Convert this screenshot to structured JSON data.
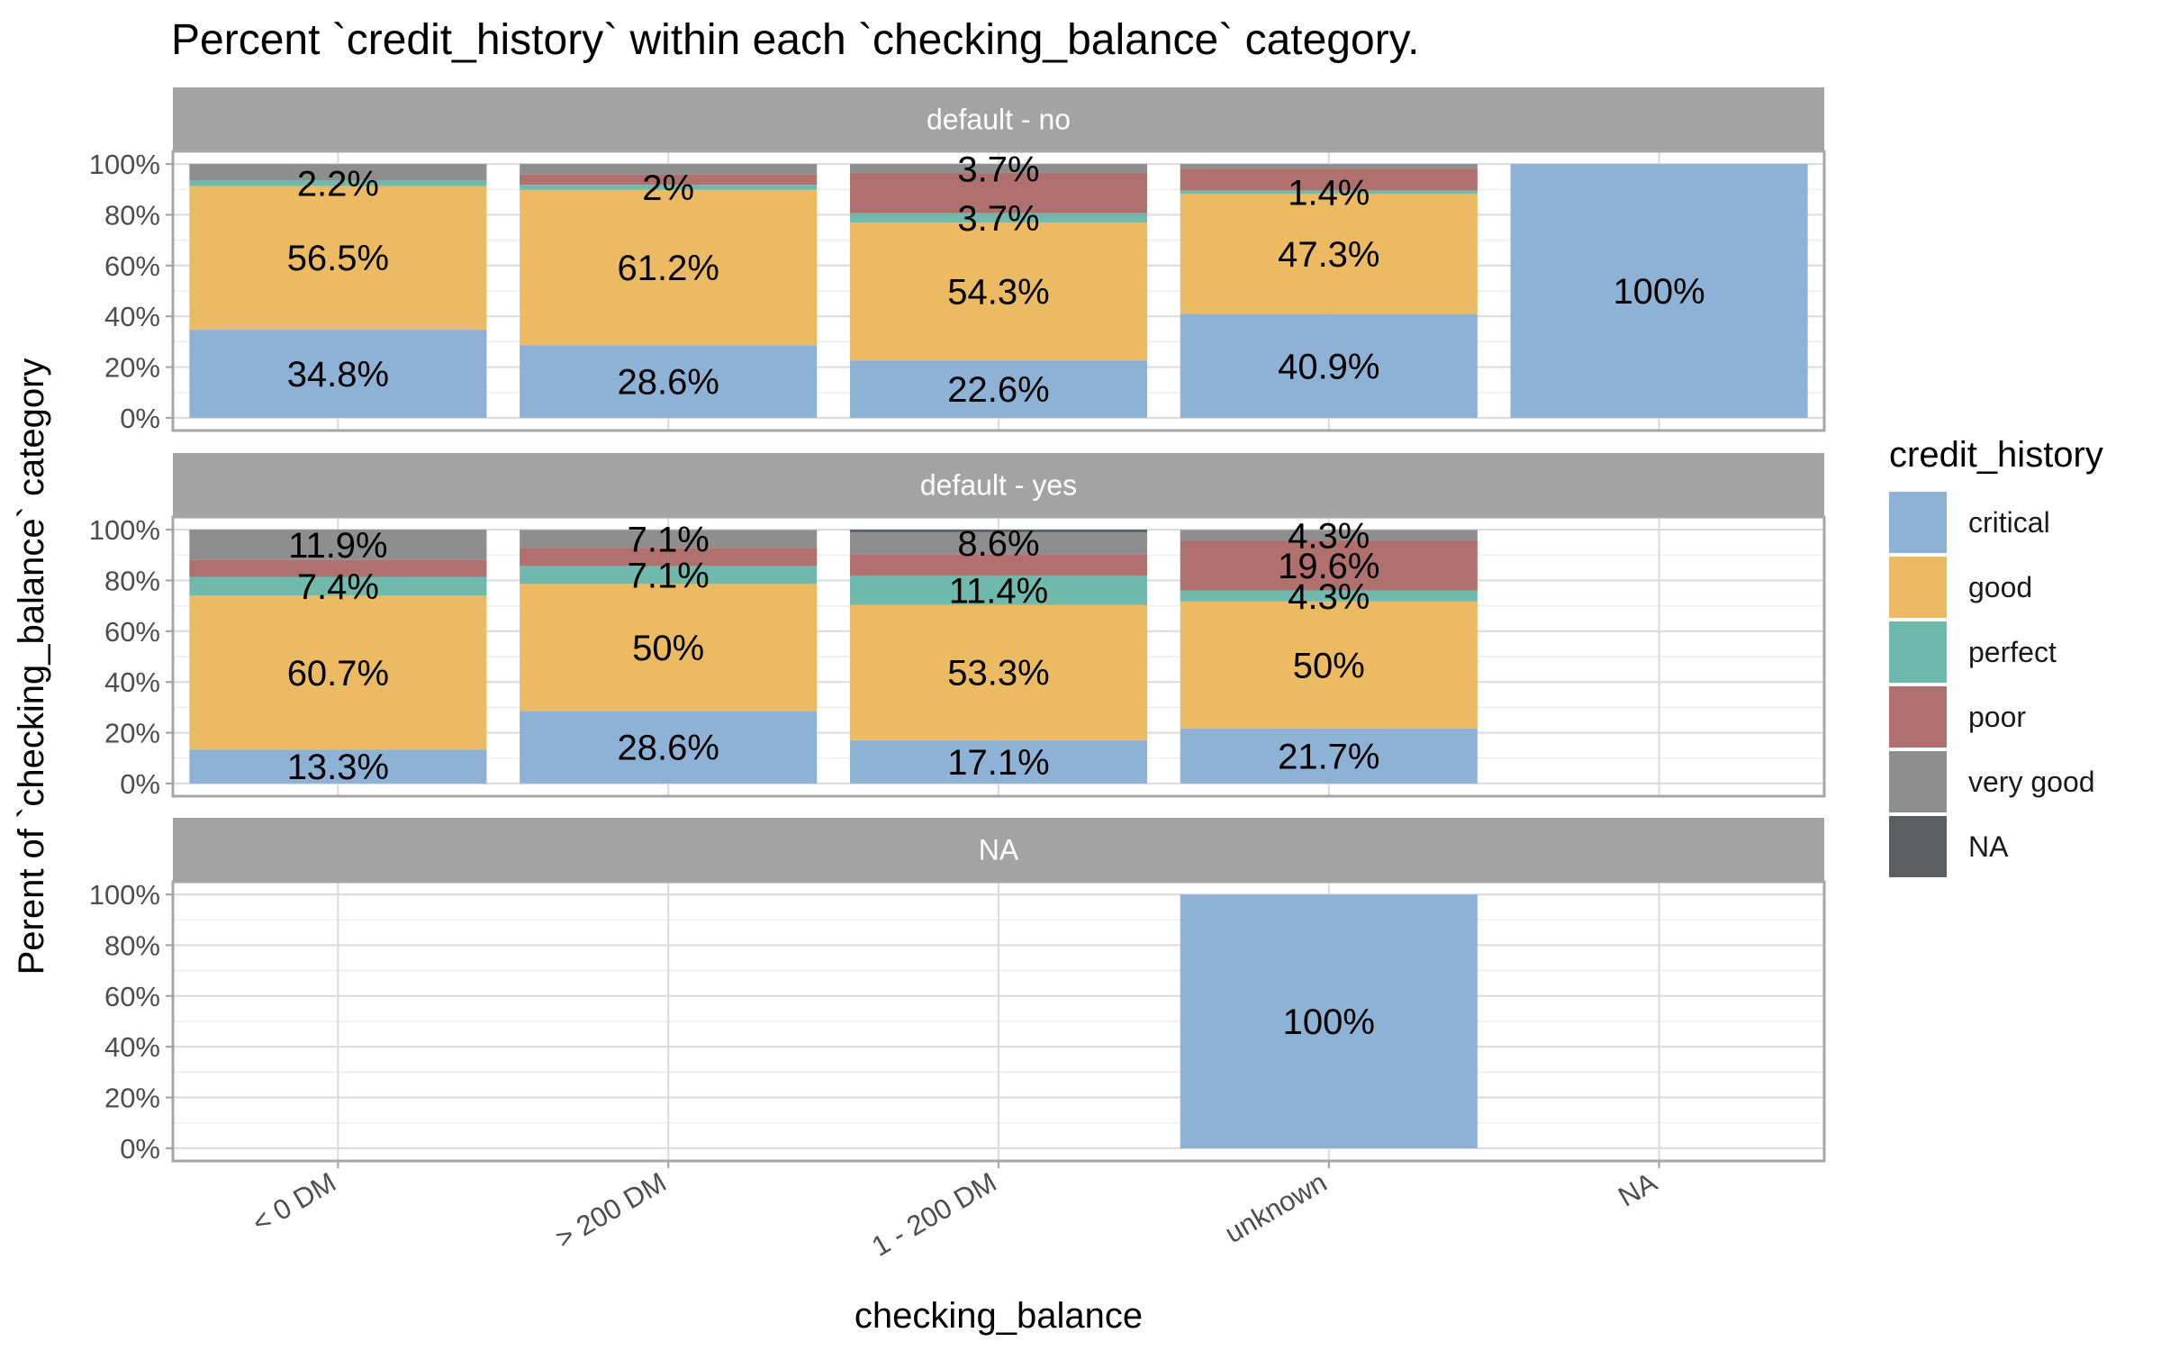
{
  "chart_data": {
    "type": "bar",
    "stacked": true,
    "title": "Percent `credit_history` within each `checking_balance` category.",
    "xlabel": "checking_balance",
    "ylabel": "Perent of `checking_balance` category",
    "ylim": [
      0,
      100
    ],
    "y_ticks": [
      "0%",
      "20%",
      "40%",
      "60%",
      "80%",
      "100%"
    ],
    "categories": [
      "< 0 DM",
      "> 200 DM",
      "1 - 200 DM",
      "unknown",
      "NA"
    ],
    "legend": {
      "title": "credit_history",
      "position": "right",
      "items": [
        {
          "name": "critical",
          "color": "#8eb1d6"
        },
        {
          "name": "good",
          "color": "#ebba63"
        },
        {
          "name": "perfect",
          "color": "#6fbaad"
        },
        {
          "name": "poor",
          "color": "#b0706e"
        },
        {
          "name": "very good",
          "color": "#8e8e8e"
        },
        {
          "name": "NA",
          "color": "#5b5f61"
        }
      ]
    },
    "grid": true,
    "facets": [
      {
        "label": "default - no",
        "bars": [
          {
            "category": "< 0 DM",
            "segments": [
              {
                "series": "critical",
                "value": 34.8,
                "label": "34.8%"
              },
              {
                "series": "good",
                "value": 56.5,
                "label": "56.5%"
              },
              {
                "series": "perfect",
                "value": 2.2,
                "label": "2.2%"
              },
              {
                "series": "poor",
                "value": 0,
                "label": ""
              },
              {
                "series": "very good",
                "value": 6.5,
                "label": ""
              }
            ]
          },
          {
            "category": "> 200 DM",
            "segments": [
              {
                "series": "critical",
                "value": 28.6,
                "label": "28.6%"
              },
              {
                "series": "good",
                "value": 61.2,
                "label": "61.2%"
              },
              {
                "series": "perfect",
                "value": 2,
                "label": "2%"
              },
              {
                "series": "poor",
                "value": 4.1,
                "label": ""
              },
              {
                "series": "very good",
                "value": 4.1,
                "label": ""
              }
            ]
          },
          {
            "category": "1 - 200 DM",
            "segments": [
              {
                "series": "critical",
                "value": 22.6,
                "label": "22.6%"
              },
              {
                "series": "good",
                "value": 54.3,
                "label": "54.3%"
              },
              {
                "series": "perfect",
                "value": 3.7,
                "label": "3.7%"
              },
              {
                "series": "poor",
                "value": 15.7,
                "label": ""
              },
              {
                "series": "very good",
                "value": 3.7,
                "label": "3.7%"
              }
            ]
          },
          {
            "category": "unknown",
            "segments": [
              {
                "series": "critical",
                "value": 40.9,
                "label": "40.9%"
              },
              {
                "series": "good",
                "value": 47.3,
                "label": "47.3%"
              },
              {
                "series": "perfect",
                "value": 1.4,
                "label": "1.4%"
              },
              {
                "series": "poor",
                "value": 8.6,
                "label": ""
              },
              {
                "series": "very good",
                "value": 1.8,
                "label": ""
              }
            ]
          },
          {
            "category": "NA",
            "segments": [
              {
                "series": "critical",
                "value": 100,
                "label": "100%"
              }
            ]
          }
        ]
      },
      {
        "label": "default - yes",
        "bars": [
          {
            "category": "< 0 DM",
            "segments": [
              {
                "series": "critical",
                "value": 13.3,
                "label": "13.3%"
              },
              {
                "series": "good",
                "value": 60.7,
                "label": "60.7%"
              },
              {
                "series": "perfect",
                "value": 7.4,
                "label": "7.4%"
              },
              {
                "series": "poor",
                "value": 6.7,
                "label": ""
              },
              {
                "series": "very good",
                "value": 11.9,
                "label": "11.9%"
              }
            ]
          },
          {
            "category": "> 200 DM",
            "segments": [
              {
                "series": "critical",
                "value": 28.6,
                "label": "28.6%"
              },
              {
                "series": "good",
                "value": 50,
                "label": "50%"
              },
              {
                "series": "perfect",
                "value": 7.1,
                "label": "7.1%"
              },
              {
                "series": "poor",
                "value": 7.1,
                "label": ""
              },
              {
                "series": "very good",
                "value": 7.1,
                "label": "7.1%"
              }
            ]
          },
          {
            "category": "1 - 200 DM",
            "segments": [
              {
                "series": "critical",
                "value": 17.1,
                "label": "17.1%"
              },
              {
                "series": "good",
                "value": 53.3,
                "label": "53.3%"
              },
              {
                "series": "perfect",
                "value": 11.4,
                "label": "11.4%"
              },
              {
                "series": "poor",
                "value": 8.6,
                "label": ""
              },
              {
                "series": "very good",
                "value": 8.6,
                "label": "8.6%"
              },
              {
                "series": "NA",
                "value": 1,
                "label": ""
              }
            ]
          },
          {
            "category": "unknown",
            "segments": [
              {
                "series": "critical",
                "value": 21.7,
                "label": "21.7%"
              },
              {
                "series": "good",
                "value": 50,
                "label": "50%"
              },
              {
                "series": "perfect",
                "value": 4.3,
                "label": "4.3%"
              },
              {
                "series": "poor",
                "value": 19.6,
                "label": "19.6%"
              },
              {
                "series": "very good",
                "value": 4.3,
                "label": "4.3%"
              }
            ]
          }
        ]
      },
      {
        "label": "NA",
        "bars": [
          {
            "category": "unknown",
            "segments": [
              {
                "series": "critical",
                "value": 100,
                "label": "100%"
              }
            ]
          }
        ]
      }
    ]
  }
}
